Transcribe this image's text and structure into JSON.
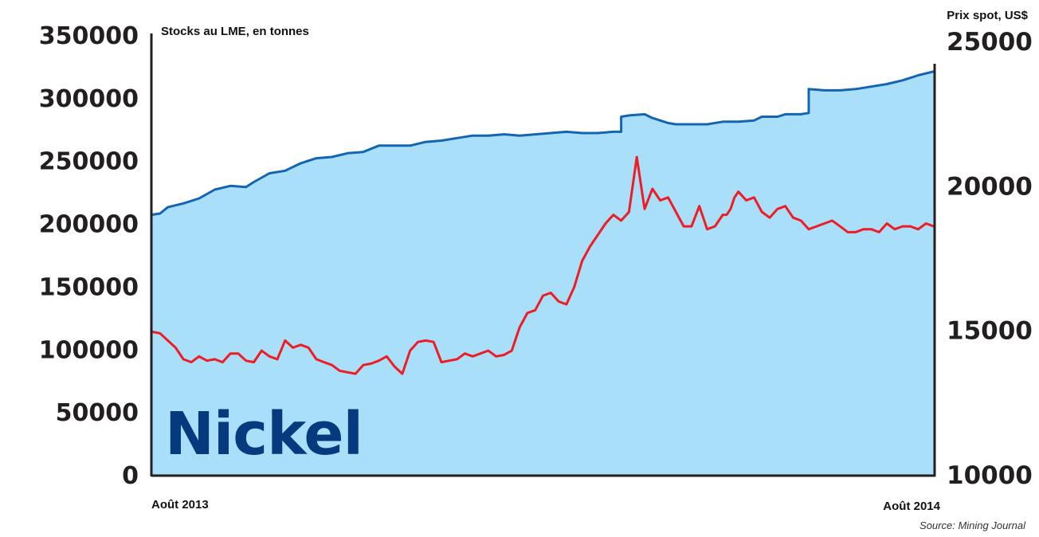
{
  "chart_data": {
    "type": "line",
    "title": "Nickel",
    "source": "Source: Mining Journal",
    "x_start_label": "Août 2013",
    "x_end_label": "Août 2014",
    "left_axis": {
      "label": "Stocks au LME, en tonnes",
      "min": 0,
      "max": 350000,
      "ticks": [
        "350000",
        "300000",
        "250000",
        "200000",
        "150000",
        "100000",
        "50000",
        "0"
      ]
    },
    "right_axis": {
      "label": "Prix spot, US$",
      "min": 10000,
      "max": 25000,
      "ticks": [
        "25000",
        "20000",
        "15000",
        "10000"
      ]
    },
    "colors": {
      "stocks_line": "#1464b4",
      "stocks_fill": "#a9dff8",
      "price_line": "#ee1c25",
      "axis": "#231f20",
      "title": "#063a7e"
    },
    "series": [
      {
        "name": "Stocks au LME (tonnes)",
        "axis": "left",
        "x": [
          0,
          0.01,
          0.02,
          0.04,
          0.06,
          0.08,
          0.1,
          0.12,
          0.13,
          0.15,
          0.17,
          0.19,
          0.21,
          0.23,
          0.25,
          0.27,
          0.29,
          0.31,
          0.33,
          0.35,
          0.37,
          0.39,
          0.41,
          0.43,
          0.45,
          0.47,
          0.49,
          0.51,
          0.53,
          0.55,
          0.57,
          0.59,
          0.6,
          0.6,
          0.61,
          0.63,
          0.64,
          0.65,
          0.66,
          0.67,
          0.69,
          0.71,
          0.73,
          0.75,
          0.77,
          0.78,
          0.8,
          0.81,
          0.83,
          0.84,
          0.84,
          0.86,
          0.88,
          0.9,
          0.92,
          0.94,
          0.96,
          0.98,
          1
        ],
        "values": [
          207000,
          208000,
          213000,
          216000,
          220000,
          227000,
          230000,
          229000,
          233000,
          240000,
          242000,
          248000,
          252000,
          253000,
          256000,
          257000,
          262000,
          262000,
          262000,
          265000,
          266000,
          268000,
          270000,
          270000,
          271000,
          270000,
          271000,
          272000,
          273000,
          272000,
          272000,
          273000,
          273000,
          285000,
          286000,
          287000,
          284000,
          282000,
          280000,
          279000,
          279000,
          279000,
          281000,
          281000,
          282000,
          285000,
          285000,
          287000,
          287000,
          288000,
          307000,
          306000,
          306000,
          307000,
          309000,
          311000,
          314000,
          318000,
          321000
        ]
      },
      {
        "name": "Prix spot (US$)",
        "axis": "right",
        "x": [
          0,
          0.01,
          0.02,
          0.03,
          0.04,
          0.05,
          0.06,
          0.07,
          0.08,
          0.09,
          0.1,
          0.11,
          0.12,
          0.13,
          0.14,
          0.15,
          0.16,
          0.17,
          0.18,
          0.19,
          0.2,
          0.21,
          0.22,
          0.23,
          0.24,
          0.25,
          0.26,
          0.27,
          0.28,
          0.29,
          0.3,
          0.31,
          0.32,
          0.33,
          0.34,
          0.35,
          0.36,
          0.37,
          0.38,
          0.39,
          0.4,
          0.41,
          0.42,
          0.43,
          0.44,
          0.45,
          0.46,
          0.47,
          0.48,
          0.49,
          0.5,
          0.51,
          0.52,
          0.53,
          0.54,
          0.55,
          0.56,
          0.57,
          0.58,
          0.59,
          0.6,
          0.61,
          0.62,
          0.63,
          0.64,
          0.65,
          0.66,
          0.67,
          0.68,
          0.69,
          0.7,
          0.71,
          0.72,
          0.73,
          0.735,
          0.74,
          0.745,
          0.75,
          0.76,
          0.77,
          0.78,
          0.79,
          0.8,
          0.81,
          0.82,
          0.83,
          0.84,
          0.85,
          0.86,
          0.87,
          0.88,
          0.89,
          0.9,
          0.91,
          0.92,
          0.93,
          0.94,
          0.95,
          0.96,
          0.97,
          0.98,
          0.99,
          1
        ],
        "values": [
          14950,
          14900,
          14650,
          14400,
          14000,
          13900,
          14100,
          13950,
          14000,
          13900,
          14200,
          14200,
          13950,
          13900,
          14300,
          14100,
          14000,
          14650,
          14400,
          14500,
          14400,
          14000,
          13900,
          13800,
          13600,
          13550,
          13500,
          13800,
          13850,
          13950,
          14100,
          13750,
          13500,
          14300,
          14600,
          14650,
          14600,
          13900,
          13950,
          14000,
          14200,
          14100,
          14200,
          14300,
          14100,
          14150,
          14300,
          15100,
          15600,
          15700,
          16200,
          16300,
          16000,
          15900,
          16500,
          17400,
          17900,
          18300,
          18700,
          19000,
          18800,
          19100,
          21000,
          19200,
          19900,
          19500,
          19600,
          19100,
          18600,
          18600,
          19300,
          18500,
          18600,
          19000,
          19000,
          19200,
          19600,
          19800,
          19500,
          19600,
          19100,
          18900,
          19200,
          19300,
          18900,
          18800,
          18500,
          18600,
          18700,
          18800,
          18600,
          18400,
          18400,
          18500,
          18500,
          18400,
          18700,
          18500,
          18600,
          18600,
          18500,
          18700,
          18600
        ]
      }
    ]
  }
}
